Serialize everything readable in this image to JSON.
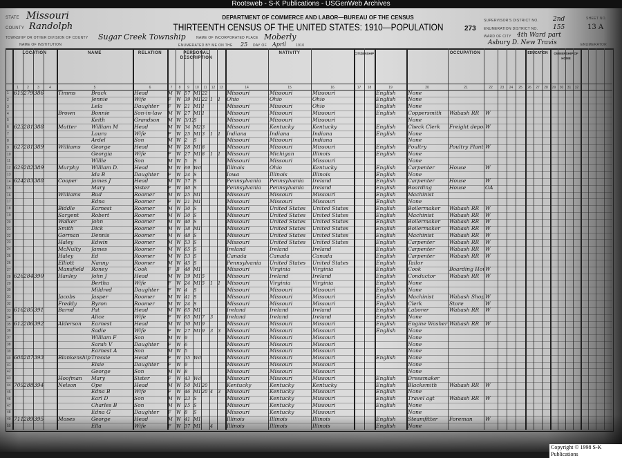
{
  "banner": "Rootsweb - S-K Publications - USGenWeb Archives",
  "header": {
    "state_label": "State",
    "state": "Missouri",
    "county_label": "County",
    "county": "Randolph",
    "township_label": "Township or other division of county",
    "township": "Sugar Creek Township",
    "institution_label": "Name of institution",
    "department": "DEPARTMENT OF COMMERCE AND LABOR—BUREAU OF THE CENSUS",
    "title": "THIRTEENTH CENSUS OF THE UNITED STATES: 1910—POPULATION",
    "incorporated_place_label": "Name of incorporated place",
    "incorporated_place": "Moberly",
    "enumerated_label": "Enumerated by me on the",
    "enumerated_day": "25",
    "day_of_label": "day of",
    "enumerated_month": "April",
    "year": "1910",
    "page_stamp": "273",
    "supervisor_label": "Supervisor's District No.",
    "supervisor_district": "2nd",
    "enumeration_label": "Enumeration District No.",
    "enumeration_district": "155",
    "sheet_label": "Sheet No.",
    "sheet_no": "13 A",
    "ward_label": "Ward of city",
    "ward": "4th Ward part",
    "enumerator": "Asbury D. New Travis",
    "enumerator_label": "Enumerator"
  },
  "column_groups": [
    "LOCATION",
    "NAME",
    "RELATION",
    "PERSONAL DESCRIPTION",
    "NATIVITY",
    "CITIZENSHIP",
    "OCCUPATION",
    "EDUCATION",
    "OWNERSHIP OF HOME"
  ],
  "rows": [
    [
      "1",
      "619",
      "279",
      "386",
      "Timms",
      "Brack",
      "Head",
      "M",
      "W",
      "57",
      "M1",
      "22",
      "",
      "",
      "Missouri",
      "Missouri",
      "Missouri",
      "English",
      "None",
      "",
      ""
    ],
    [
      "2",
      "",
      "",
      "",
      "",
      "Jennie",
      "Wife",
      "F",
      "W",
      "39",
      "M1",
      "22",
      "1",
      "1",
      "Ohio",
      "Ohio",
      "Ohio",
      "English",
      "None",
      "",
      ""
    ],
    [
      "3",
      "",
      "",
      "",
      "",
      "Lela",
      "Daughter",
      "F",
      "W",
      "21",
      "M1",
      "1",
      "",
      "",
      "Missouri",
      "Missouri",
      "Ohio",
      "English",
      "None",
      "",
      ""
    ],
    [
      "4",
      "",
      "",
      "",
      "Brown",
      "Bonnie",
      "Son-in-law",
      "M",
      "W",
      "27",
      "M1",
      "1",
      "",
      "",
      "Missouri",
      "Missouri",
      "Missouri",
      "English",
      "Coppersmith",
      "Wabash RR",
      "W"
    ],
    [
      "5",
      "",
      "",
      "",
      "",
      "Keith",
      "Grandson",
      "M",
      "W",
      "3/12",
      "S",
      "",
      "",
      "",
      "Missouri",
      "Missouri",
      "Missouri",
      "",
      "None",
      "",
      ""
    ],
    [
      "6",
      "623",
      "281",
      "388",
      "Mutter",
      "William M",
      "Head",
      "M",
      "W",
      "34",
      "M2",
      "3",
      "",
      "",
      "Missouri",
      "Kentucky",
      "Kentucky",
      "English",
      "Check Clerk",
      "Freight depot",
      "W"
    ],
    [
      "7",
      "",
      "",
      "",
      "",
      "Laura",
      "Wife",
      "F",
      "W",
      "25",
      "M1",
      "3",
      "1",
      "1",
      "Indiana",
      "Indiana",
      "Indiana",
      "English",
      "None",
      "",
      ""
    ],
    [
      "8",
      "",
      "",
      "",
      "",
      "Ardel",
      "Son",
      "M",
      "W",
      "2",
      "S",
      "",
      "",
      "",
      "Missouri",
      "Missouri",
      "Indiana",
      "",
      "None",
      "",
      ""
    ],
    [
      "9",
      "627",
      "281",
      "389",
      "Williams",
      "George",
      "Head",
      "M",
      "W",
      "28",
      "M1",
      "8",
      "",
      "",
      "Missouri",
      "Missouri",
      "Missouri",
      "English",
      "Poultry",
      "Poultry Plant",
      "W"
    ],
    [
      "10",
      "",
      "",
      "",
      "",
      "Georgia",
      "Wife",
      "F",
      "W",
      "27",
      "M1",
      "8",
      "1",
      "1",
      "Missouri",
      "Michigan",
      "Illinois",
      "English",
      "None",
      "",
      ""
    ],
    [
      "11",
      "",
      "",
      "",
      "",
      "Willie",
      "Son",
      "M",
      "W",
      "5",
      "S",
      "",
      "",
      "",
      "Missouri",
      "Missouri",
      "Missouri",
      "",
      "None",
      "",
      ""
    ],
    [
      "12",
      "629",
      "282",
      "389",
      "Murphy",
      "William D.",
      "Head",
      "M",
      "W",
      "69",
      "Wd",
      "",
      "",
      "",
      "Illinois",
      "Ohio",
      "Kentucky",
      "English",
      "Carpenter",
      "House",
      "W"
    ],
    [
      "13",
      "",
      "",
      "",
      "",
      "Ida B",
      "Daughter",
      "F",
      "W",
      "24",
      "S",
      "",
      "",
      "",
      "Iowa",
      "Illinois",
      "Illinois",
      "English",
      "None",
      "",
      ""
    ],
    [
      "14",
      "624",
      "283",
      "388",
      "Cooper",
      "James J",
      "Head",
      "M",
      "W",
      "37",
      "S",
      "",
      "",
      "",
      "Pennsylvania",
      "Pennsylvania",
      "Ireland",
      "English",
      "Carpenter",
      "House",
      "W"
    ],
    [
      "15",
      "",
      "",
      "",
      "",
      "Mary",
      "Sister",
      "F",
      "W",
      "40",
      "S",
      "",
      "",
      "",
      "Pennsylvania",
      "Pennsylvania",
      "Ireland",
      "English",
      "Boarding",
      "House",
      "OA"
    ],
    [
      "16",
      "",
      "",
      "",
      "Williams",
      "Bud",
      "Roomer",
      "M",
      "W",
      "25",
      "M1",
      "",
      "",
      "",
      "Missouri",
      "Missouri",
      "Missouri",
      "English",
      "Machinist",
      "",
      ""
    ],
    [
      "17",
      "",
      "",
      "",
      "",
      "Edna",
      "Roomer",
      "F",
      "W",
      "21",
      "M1",
      "",
      "",
      "",
      "Missouri",
      "Missouri",
      "Missouri",
      "English",
      "None",
      "",
      ""
    ],
    [
      "18",
      "",
      "",
      "",
      "Biddle",
      "Earnest",
      "Roomer",
      "M",
      "W",
      "30",
      "S",
      "",
      "",
      "",
      "Missouri",
      "United States",
      "United States",
      "English",
      "Boilermaker",
      "Wabash RR",
      "W"
    ],
    [
      "19",
      "",
      "",
      "",
      "Sargent",
      "Robert",
      "Roomer",
      "M",
      "W",
      "30",
      "S",
      "",
      "",
      "",
      "Missouri",
      "United States",
      "United States",
      "English",
      "Machinist",
      "Wabash RR",
      "W"
    ],
    [
      "20",
      "",
      "",
      "",
      "Walker",
      "John",
      "Roomer",
      "M",
      "W",
      "40",
      "S",
      "",
      "",
      "",
      "Missouri",
      "United States",
      "United States",
      "English",
      "Boilermaker",
      "Wabash RR",
      "W"
    ],
    [
      "21",
      "",
      "",
      "",
      "Smith",
      "Dick",
      "Roomer",
      "M",
      "W",
      "38",
      "M1",
      "",
      "",
      "",
      "Missouri",
      "United States",
      "United States",
      "English",
      "Boilermaker",
      "Wabash RR",
      "W"
    ],
    [
      "22",
      "",
      "",
      "",
      "Gorman",
      "Dennis",
      "Roomer",
      "M",
      "W",
      "48",
      "S",
      "",
      "",
      "",
      "Missouri",
      "United States",
      "United States",
      "English",
      "Machinist",
      "Wabash RR",
      "W"
    ],
    [
      "23",
      "",
      "",
      "",
      "Haley",
      "Edwin",
      "Roomer",
      "M",
      "W",
      "53",
      "S",
      "",
      "",
      "",
      "Missouri",
      "United States",
      "United States",
      "English",
      "Carpenter",
      "Wabash RR",
      "W"
    ],
    [
      "24",
      "",
      "",
      "",
      "McNulty",
      "James",
      "Roomer",
      "M",
      "W",
      "65",
      "S",
      "",
      "",
      "",
      "Ireland",
      "Ireland",
      "Ireland",
      "English",
      "Carpenter",
      "Wabash RR",
      "W"
    ],
    [
      "25",
      "",
      "",
      "",
      "Haley",
      "Ed",
      "Roomer",
      "M",
      "W",
      "53",
      "S",
      "",
      "",
      "",
      "Canada",
      "Canada",
      "Canada",
      "English",
      "Carpenter",
      "Wabash RR",
      "W"
    ],
    [
      "26",
      "",
      "",
      "",
      "Elliott",
      "Nanny",
      "Roomer",
      "M",
      "W",
      "45",
      "S",
      "",
      "",
      "",
      "Pennsylvania",
      "United States",
      "United States",
      "English",
      "Tailor",
      "",
      ""
    ],
    [
      "27",
      "",
      "",
      "",
      "Mansfield",
      "Roney",
      "Cook",
      "F",
      "B",
      "48",
      "M1",
      "",
      "",
      "",
      "Missouri",
      "Virginia",
      "Virginia",
      "English",
      "Cook",
      "Boarding House",
      "W"
    ],
    [
      "28",
      "626",
      "284",
      "390",
      "Hanley",
      "John J",
      "Head",
      "M",
      "W",
      "39",
      "M1",
      "5",
      "",
      "",
      "Missouri",
      "Ireland",
      "Ireland",
      "English",
      "Conductor",
      "Wabash RR",
      "W"
    ],
    [
      "29",
      "",
      "",
      "",
      "",
      "Bertha",
      "Wife",
      "F",
      "W",
      "24",
      "M1",
      "5",
      "1",
      "1",
      "Missouri",
      "Virginia",
      "Virginia",
      "English",
      "None",
      "",
      ""
    ],
    [
      "30",
      "",
      "",
      "",
      "",
      "Mildred",
      "Daughter",
      "F",
      "W",
      "4",
      "S",
      "",
      "",
      "",
      "Missouri",
      "Missouri",
      "Missouri",
      "English",
      "None",
      "",
      ""
    ],
    [
      "31",
      "",
      "",
      "",
      "Jacobs",
      "Jasper",
      "Roomer",
      "M",
      "W",
      "41",
      "S",
      "",
      "",
      "",
      "Missouri",
      "Missouri",
      "Missouri",
      "English",
      "Machinist",
      "Wabash Shops",
      "W"
    ],
    [
      "32",
      "",
      "",
      "",
      "Freddy",
      "Byron",
      "Roomer",
      "M",
      "W",
      "24",
      "S",
      "",
      "",
      "",
      "Missouri",
      "Missouri",
      "Missouri",
      "English",
      "Clerk",
      "Store",
      "W"
    ],
    [
      "33",
      "616",
      "285",
      "391",
      "Barnd",
      "Pat",
      "Head",
      "M",
      "W",
      "65",
      "M1",
      "",
      "",
      "",
      "Ireland",
      "Ireland",
      "Ireland",
      "English",
      "Laborer",
      "Wabash RR",
      "W"
    ],
    [
      "34",
      "",
      "",
      "",
      "",
      "Alice",
      "Wife",
      "F",
      "W",
      "65",
      "M1",
      "7",
      "3",
      "",
      "Ireland",
      "Ireland",
      "Ireland",
      "English",
      "None",
      "",
      ""
    ],
    [
      "35",
      "612",
      "286",
      "392",
      "Alderson",
      "Earnest",
      "Head",
      "M",
      "W",
      "30",
      "M1",
      "9",
      "",
      "",
      "Missouri",
      "Missouri",
      "Missouri",
      "English",
      "Engine Washer",
      "Wabash RR",
      "W"
    ],
    [
      "36",
      "",
      "",
      "",
      "",
      "Sadie",
      "Wife",
      "F",
      "W",
      "27",
      "M1",
      "9",
      "3",
      "3",
      "Missouri",
      "Missouri",
      "Missouri",
      "English",
      "None",
      "",
      ""
    ],
    [
      "37",
      "",
      "",
      "",
      "",
      "William F",
      "Son",
      "M",
      "W",
      "9",
      "",
      "",
      "",
      "",
      "Missouri",
      "Missouri",
      "Missouri",
      "",
      "None",
      "",
      ""
    ],
    [
      "38",
      "",
      "",
      "",
      "",
      "Sarah V",
      "Daughter",
      "F",
      "W",
      "6",
      "",
      "",
      "",
      "",
      "Missouri",
      "Missouri",
      "Missouri",
      "",
      "None",
      "",
      ""
    ],
    [
      "39",
      "",
      "",
      "",
      "",
      "Earnest A",
      "Son",
      "M",
      "W",
      "5",
      "",
      "",
      "",
      "",
      "Missouri",
      "Missouri",
      "Missouri",
      "",
      "None",
      "",
      ""
    ],
    [
      "40",
      "608",
      "287",
      "393",
      "Blankenship",
      "Tressie",
      "Head",
      "F",
      "W",
      "35",
      "Wd",
      "",
      "",
      "",
      "Missouri",
      "Missouri",
      "Missouri",
      "English",
      "None",
      "",
      ""
    ],
    [
      "41",
      "",
      "",
      "",
      "",
      "Elsie",
      "Daughter",
      "F",
      "W",
      "9",
      "",
      "",
      "",
      "",
      "Missouri",
      "Missouri",
      "Missouri",
      "",
      "None",
      "",
      ""
    ],
    [
      "42",
      "",
      "",
      "",
      "",
      "George",
      "Son",
      "M",
      "W",
      "8",
      "",
      "",
      "",
      "",
      "Missouri",
      "Missouri",
      "Missouri",
      "",
      "None",
      "",
      ""
    ],
    [
      "43",
      "",
      "",
      "",
      "Hoofman",
      "Mary",
      "Sister",
      "F",
      "W",
      "43",
      "Wd",
      "",
      "",
      "",
      "Missouri",
      "Missouri",
      "Missouri",
      "English",
      "Dressmaker",
      "",
      ""
    ],
    [
      "44",
      "709",
      "288",
      "394",
      "Nelson",
      "Ope",
      "Head",
      "M",
      "W",
      "50",
      "M1",
      "20",
      "",
      "",
      "Kentucky",
      "Kentucky",
      "Kentucky",
      "English",
      "Blacksmith",
      "Wabash RR",
      "W"
    ],
    [
      "45",
      "",
      "",
      "",
      "",
      "Edna B",
      "Wife",
      "F",
      "W",
      "46",
      "M1",
      "20",
      "4",
      "3",
      "Missouri",
      "Kentucky",
      "Missouri",
      "English",
      "None",
      "",
      ""
    ],
    [
      "46",
      "",
      "",
      "",
      "",
      "Earl D",
      "Son",
      "M",
      "W",
      "23",
      "S",
      "",
      "",
      "",
      "Missouri",
      "Kentucky",
      "Missouri",
      "English",
      "Travel agt",
      "Wabash RR",
      "W"
    ],
    [
      "47",
      "",
      "",
      "",
      "",
      "Charles B",
      "Son",
      "M",
      "W",
      "15",
      "S",
      "",
      "",
      "",
      "Missouri",
      "Kentucky",
      "Missouri",
      "English",
      "None",
      "",
      ""
    ],
    [
      "48",
      "",
      "",
      "",
      "",
      "Edna G",
      "Daughter",
      "F",
      "W",
      "8",
      "S",
      "",
      "",
      "",
      "Missouri",
      "Kentucky",
      "Missouri",
      "",
      "None",
      "",
      ""
    ],
    [
      "49",
      "711",
      "289",
      "395",
      "Moses",
      "George",
      "Head",
      "M",
      "W",
      "41",
      "M1",
      "",
      "",
      "",
      "Illinois",
      "Illinois",
      "Illinois",
      "English",
      "Steamfitter",
      "Foreman",
      "W"
    ],
    [
      "50",
      "",
      "",
      "",
      "",
      "Ella",
      "Wife",
      "F",
      "W",
      "37",
      "M1",
      "",
      "4",
      "",
      "Illinois",
      "Illinois",
      "Illinois",
      "English",
      "None",
      "",
      ""
    ]
  ],
  "footer": {
    "copyright": "Copyright © 1998 S-K Publications"
  },
  "colors": {
    "paper": "#d6d6d6",
    "ink": "#111111",
    "banner": "#111111"
  }
}
